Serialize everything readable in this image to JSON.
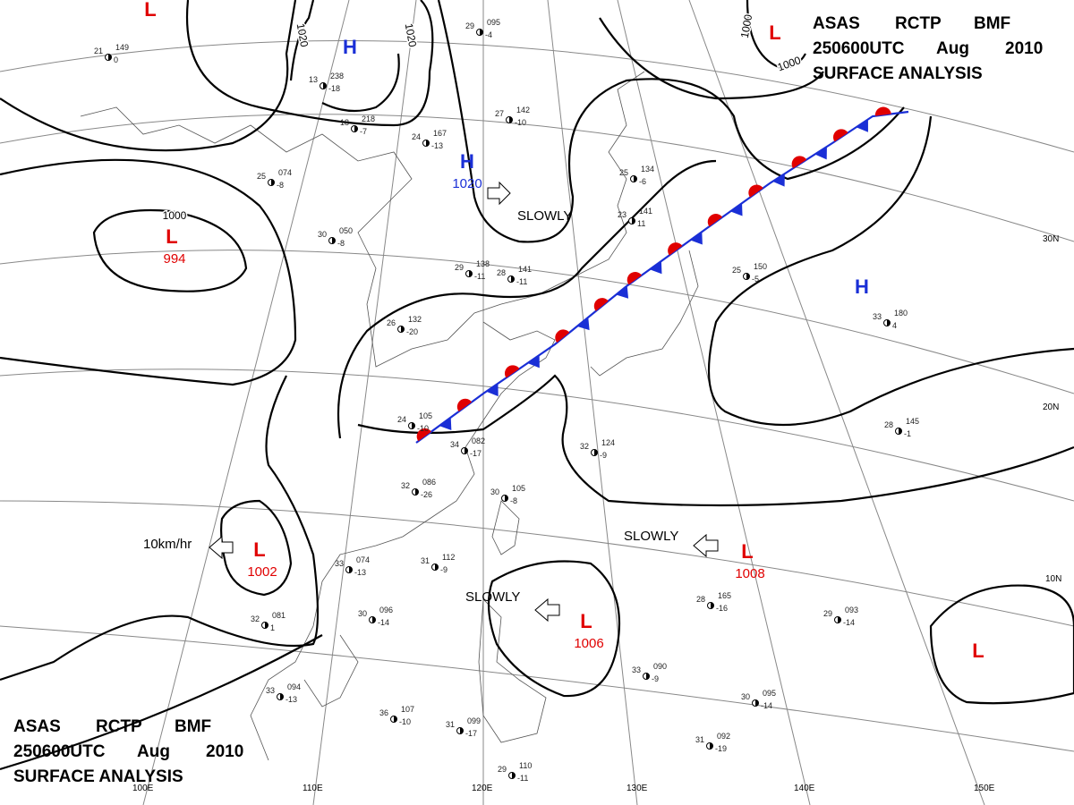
{
  "header_top": {
    "line1": [
      "ASAS",
      "RCTP",
      "BMF"
    ],
    "line2": [
      "250600UTC",
      "Aug",
      "2010"
    ],
    "line3": "SURFACE ANALYSIS"
  },
  "header_bottom": {
    "line1": [
      "ASAS",
      "RCTP",
      "BMF"
    ],
    "line2": [
      "250600UTC",
      "Aug",
      "2010"
    ],
    "line3": "SURFACE ANALYSIS"
  },
  "systems": [
    {
      "symbol": "L"
    },
    {
      "symbol": "H"
    },
    {
      "symbol": "L"
    },
    {
      "symbol": "L",
      "pressure": "994"
    },
    {
      "symbol": "H",
      "pressure": "1020"
    },
    {
      "symbol": "H"
    },
    {
      "symbol": "L",
      "pressure": "1002"
    },
    {
      "symbol": "L",
      "pressure": "1006"
    },
    {
      "symbol": "L",
      "pressure": "1008"
    },
    {
      "symbol": "L"
    }
  ],
  "isobar_labels": [
    "1020",
    "1020",
    "1000",
    "1000",
    "1000"
  ],
  "motions": [
    "SLOWLY",
    "10km/hr",
    "SLOWLY",
    "SLOWLY"
  ],
  "longitudes": [
    "100E",
    "110E",
    "120E",
    "130E",
    "140E",
    "150E"
  ],
  "latitudes": [
    "30N",
    "20N",
    "10N"
  ],
  "stations": [
    {
      "temp": "29",
      "pressure": "095",
      "dew": "-4"
    },
    {
      "temp": "21",
      "pressure": "149",
      "dew": "0"
    },
    {
      "temp": "13",
      "pressure": "238",
      "dew": "-18"
    },
    {
      "temp": "18",
      "pressure": "218",
      "dew": "-7"
    },
    {
      "temp": "27",
      "pressure": "142",
      "dew": "-10"
    },
    {
      "temp": "24",
      "pressure": "167",
      "dew": "-13"
    },
    {
      "temp": "25",
      "pressure": "074",
      "dew": "-8"
    },
    {
      "temp": "30",
      "pressure": "050",
      "dew": "-8"
    },
    {
      "temp": "29",
      "pressure": "138",
      "dew": "-11"
    },
    {
      "temp": "28",
      "pressure": "141",
      "dew": "-11"
    },
    {
      "temp": "26",
      "pressure": "132",
      "dew": "-20"
    },
    {
      "temp": "24",
      "pressure": "105",
      "dew": "-10"
    },
    {
      "temp": "34",
      "pressure": "082",
      "dew": "-17"
    },
    {
      "temp": "32",
      "pressure": "086",
      "dew": "-26"
    },
    {
      "temp": "30",
      "pressure": "105",
      "dew": "-8"
    },
    {
      "temp": "31",
      "pressure": "112",
      "dew": "-9"
    },
    {
      "temp": "33",
      "pressure": "074",
      "dew": "-13"
    },
    {
      "temp": "30",
      "pressure": "096",
      "dew": "-14"
    },
    {
      "temp": "32",
      "pressure": "081",
      "dew": "1"
    },
    {
      "temp": "33",
      "pressure": "094",
      "dew": "-13"
    },
    {
      "temp": "36",
      "pressure": "107",
      "dew": "-10"
    },
    {
      "temp": "31",
      "pressure": "099",
      "dew": "-17"
    },
    {
      "temp": "33",
      "pressure": "090",
      "dew": "-9"
    },
    {
      "temp": "28",
      "pressure": "165",
      "dew": "-16"
    },
    {
      "temp": "29",
      "pressure": "093",
      "dew": "-14"
    },
    {
      "temp": "30",
      "pressure": "095",
      "dew": "-14"
    },
    {
      "temp": "31",
      "pressure": "092",
      "dew": "-19"
    },
    {
      "temp": "28",
      "pressure": "145",
      "dew": "-1"
    },
    {
      "temp": "33",
      "pressure": "180",
      "dew": "4"
    },
    {
      "temp": "25",
      "pressure": "150",
      "dew": "-5"
    },
    {
      "temp": "32",
      "pressure": "124",
      "dew": "-9"
    },
    {
      "temp": "25",
      "pressure": "134",
      "dew": "-6"
    },
    {
      "temp": "23",
      "pressure": "141",
      "dew": "11"
    },
    {
      "temp": "29",
      "pressure": "110",
      "dew": "-11"
    }
  ]
}
